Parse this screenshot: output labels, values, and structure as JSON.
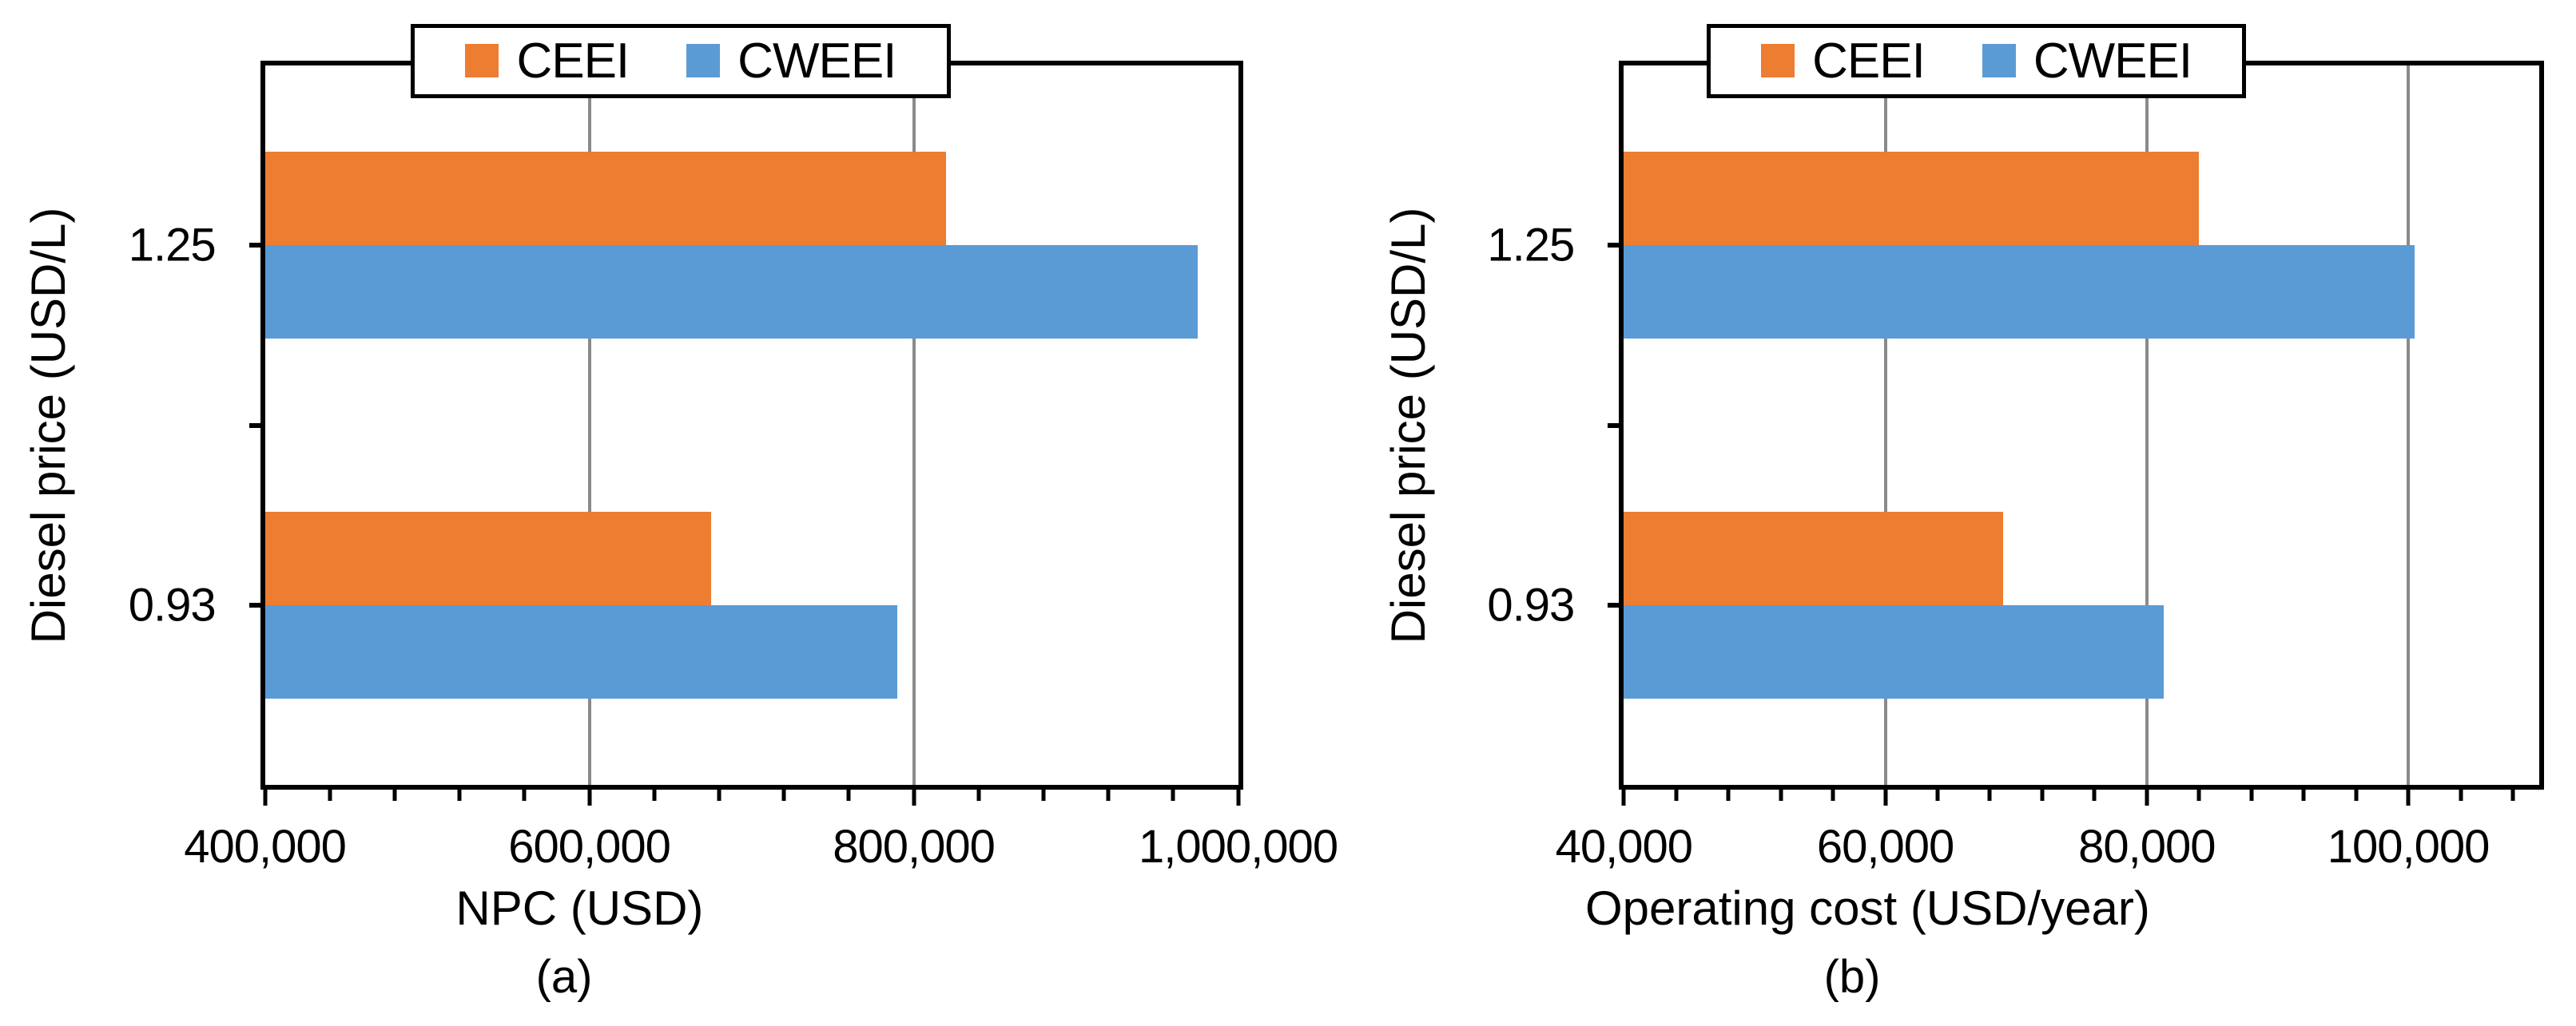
{
  "figure": {
    "background": "#FFFFFF",
    "colors": {
      "ceei": "#ED7D31",
      "cweei": "#5B9BD5",
      "gridline": "#8A8A8A",
      "axis": "#000000"
    }
  },
  "chart_data": [
    {
      "type": "bar",
      "orientation": "horizontal",
      "panel": "a",
      "caption": "(a)",
      "xlabel": "NPC (USD)",
      "ylabel": "Diesel price (USD/L)",
      "categories": [
        "1.25",
        "0.93"
      ],
      "series": [
        {
          "name": "CEEI",
          "color": "#ED7D31",
          "values": [
            820000,
            675000
          ]
        },
        {
          "name": "CWEEI",
          "color": "#5B9BD5",
          "values": [
            975000,
            790000
          ]
        }
      ],
      "x_axis": {
        "min": 400000,
        "max": 1000000,
        "major_unit": 200000,
        "minor_unit": 40000,
        "tick_values": [
          400000,
          600000,
          800000,
          1000000
        ],
        "tick_labels": [
          "400,000",
          "600,000",
          "800,000",
          "1,000,000"
        ]
      },
      "grid": true,
      "legend_position": "top"
    },
    {
      "type": "bar",
      "orientation": "horizontal",
      "panel": "b",
      "caption": "(b)",
      "xlabel": "Operating cost (USD/year)",
      "ylabel": "Diesel price (USD/L)",
      "categories": [
        "1.25",
        "0.93"
      ],
      "series": [
        {
          "name": "CEEI",
          "color": "#ED7D31",
          "values": [
            84000,
            69000
          ]
        },
        {
          "name": "CWEEI",
          "color": "#5B9BD5",
          "values": [
            100500,
            81300
          ]
        }
      ],
      "x_axis": {
        "min": 40000,
        "max": 110000,
        "major_unit": 20000,
        "minor_unit": 4000,
        "tick_values": [
          40000,
          60000,
          80000,
          100000
        ],
        "tick_labels": [
          "40,000",
          "60,000",
          "80,000",
          "100,000"
        ]
      },
      "grid": true,
      "legend_position": "top"
    }
  ]
}
